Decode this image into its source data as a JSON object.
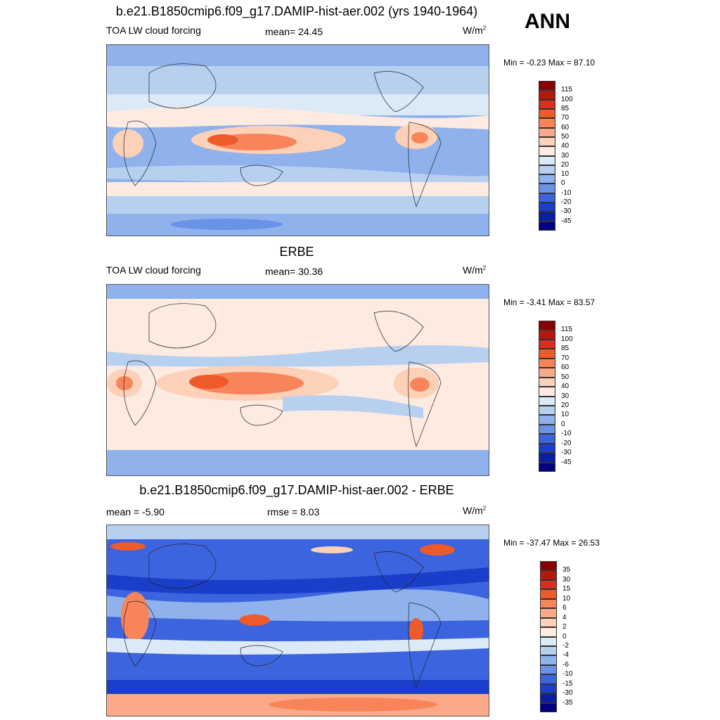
{
  "season": "ANN",
  "units_text": "W/m",
  "units_sup": "2",
  "panels": [
    {
      "title": "b.e21.B1850cmip6.f09_g17.DAMIP-hist-aer.002 (yrs 1940-1964)",
      "left_label": "TOA LW cloud forcing",
      "center_label": "mean=  24.45",
      "minmax": "Min =  -0.23 Max =  87.10"
    },
    {
      "title": "ERBE",
      "left_label": "TOA LW cloud forcing",
      "center_label": "mean=  30.36",
      "minmax": "Min =  -3.41 Max =  83.57"
    },
    {
      "title": "b.e21.B1850cmip6.f09_g17.DAMIP-hist-aer.002 - ERBE",
      "left_label": "mean =  -5.90",
      "center_label": "rmse =   8.03",
      "minmax": "Min = -37.47 Max =  26.53"
    }
  ],
  "chart_data": [
    {
      "type": "heatmap",
      "title": "b.e21.B1850cmip6.f09_g17.DAMIP-hist-aer.002 (yrs 1940-1964)",
      "variable": "TOA LW cloud forcing",
      "units": "W/m2",
      "mean": 24.45,
      "min": -0.23,
      "max": 87.1,
      "colorbar_levels": [
        115,
        100,
        85,
        70,
        60,
        50,
        40,
        30,
        20,
        10,
        0,
        -10,
        -20,
        -30,
        -45
      ],
      "colorbar_colors": [
        "#8b0000",
        "#b2180e",
        "#d7301f",
        "#ef5a2a",
        "#f8845a",
        "#fca98a",
        "#fdd0b8",
        "#fdebe1",
        "#dce9f7",
        "#b8d0f0",
        "#8fb2ec",
        "#6a92e6",
        "#3c64de",
        "#1a3ec9",
        "#0a1ea0",
        "#000080"
      ],
      "colorbar_colors_note": ""
    },
    {
      "type": "heatmap",
      "title": "ERBE",
      "variable": "TOA LW cloud forcing",
      "units": "W/m2",
      "mean": 30.36,
      "min": -3.41,
      "max": 83.57,
      "colorbar_levels": [
        115,
        100,
        85,
        70,
        60,
        50,
        40,
        30,
        20,
        10,
        0,
        -10,
        -20,
        -30,
        -45
      ],
      "colorbar_colors": [
        "#8b0000",
        "#b2180e",
        "#d7301f",
        "#ef5a2a",
        "#f8845a",
        "#fca98a",
        "#fdd0b8",
        "#fdebe1",
        "#dce9f7",
        "#b8d0f0",
        "#8fb2ec",
        "#6a92e6",
        "#3c64de",
        "#1a3ec9",
        "#0a1ea0",
        "#000080"
      ]
    },
    {
      "type": "heatmap",
      "title": "b.e21.B1850cmip6.f09_g17.DAMIP-hist-aer.002 - ERBE",
      "units": "W/m2",
      "mean": -5.9,
      "rmse": 8.03,
      "min": -37.47,
      "max": 26.53,
      "colorbar_levels": [
        35,
        30,
        15,
        10,
        6,
        4,
        2,
        0,
        -2,
        -4,
        -6,
        -10,
        -15,
        -30,
        -35
      ],
      "colorbar_colors": [
        "#8b0000",
        "#b2180e",
        "#d7301f",
        "#ef5a2a",
        "#f8845a",
        "#fca98a",
        "#fdd0b8",
        "#fdebe1",
        "#dce9f7",
        "#b8d0f0",
        "#8fb2ec",
        "#6a92e6",
        "#3c64de",
        "#1a3ec9",
        "#0a1ea0",
        "#000080"
      ]
    }
  ]
}
